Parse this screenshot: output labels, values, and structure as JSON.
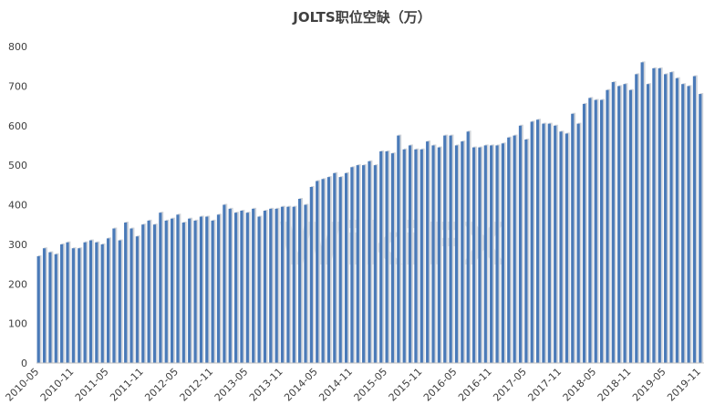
{
  "chart_data": {
    "type": "bar",
    "title": "JOLTS职位空缺（万）",
    "watermark": "WikiFX",
    "categories": [
      "2010-05",
      null,
      null,
      null,
      null,
      null,
      "2010-11",
      null,
      null,
      null,
      null,
      null,
      "2011-05",
      null,
      null,
      null,
      null,
      null,
      "2011-11",
      null,
      null,
      null,
      null,
      null,
      "2012-05",
      null,
      null,
      null,
      null,
      null,
      "2012-11",
      null,
      null,
      null,
      null,
      null,
      "2013-05",
      null,
      null,
      null,
      null,
      null,
      "2013-11",
      null,
      null,
      null,
      null,
      null,
      "2014-05",
      null,
      null,
      null,
      null,
      null,
      "2014-11",
      null,
      null,
      null,
      null,
      null,
      "2015-05",
      null,
      null,
      null,
      null,
      null,
      "2015-11",
      null,
      null,
      null,
      null,
      null,
      "2016-05",
      null,
      null,
      null,
      null,
      null,
      "2016-11",
      null,
      null,
      null,
      null,
      null,
      "2017-05",
      null,
      null,
      null,
      null,
      null,
      "2017-11",
      null,
      null,
      null,
      null,
      null,
      "2018-05",
      null,
      null,
      null,
      null,
      null,
      "2018-11",
      null,
      null,
      null,
      null,
      null,
      "2019-05",
      null,
      null,
      null,
      null,
      null,
      "2019-11"
    ],
    "values": [
      270,
      290,
      280,
      275,
      300,
      305,
      290,
      290,
      305,
      310,
      305,
      300,
      315,
      340,
      310,
      355,
      340,
      320,
      350,
      360,
      350,
      380,
      360,
      365,
      375,
      355,
      365,
      360,
      370,
      370,
      360,
      375,
      400,
      390,
      380,
      385,
      380,
      390,
      370,
      385,
      390,
      390,
      395,
      395,
      395,
      415,
      400,
      445,
      460,
      465,
      470,
      480,
      470,
      480,
      495,
      500,
      500,
      510,
      500,
      535,
      535,
      530,
      575,
      540,
      550,
      540,
      540,
      560,
      550,
      545,
      575,
      575,
      550,
      560,
      585,
      545,
      545,
      550,
      550,
      550,
      555,
      570,
      575,
      600,
      565,
      610,
      615,
      605,
      605,
      600,
      585,
      580,
      630,
      605,
      655,
      670,
      665,
      665,
      690,
      710,
      700,
      705,
      690,
      730,
      760,
      705,
      745,
      745,
      730,
      735,
      720,
      705,
      700,
      725,
      680
    ],
    "color": "#4a7ab8",
    "ylim": [
      0,
      800
    ],
    "yticks": [
      0,
      100,
      200,
      300,
      400,
      500,
      600,
      700,
      800
    ],
    "grid": false
  }
}
